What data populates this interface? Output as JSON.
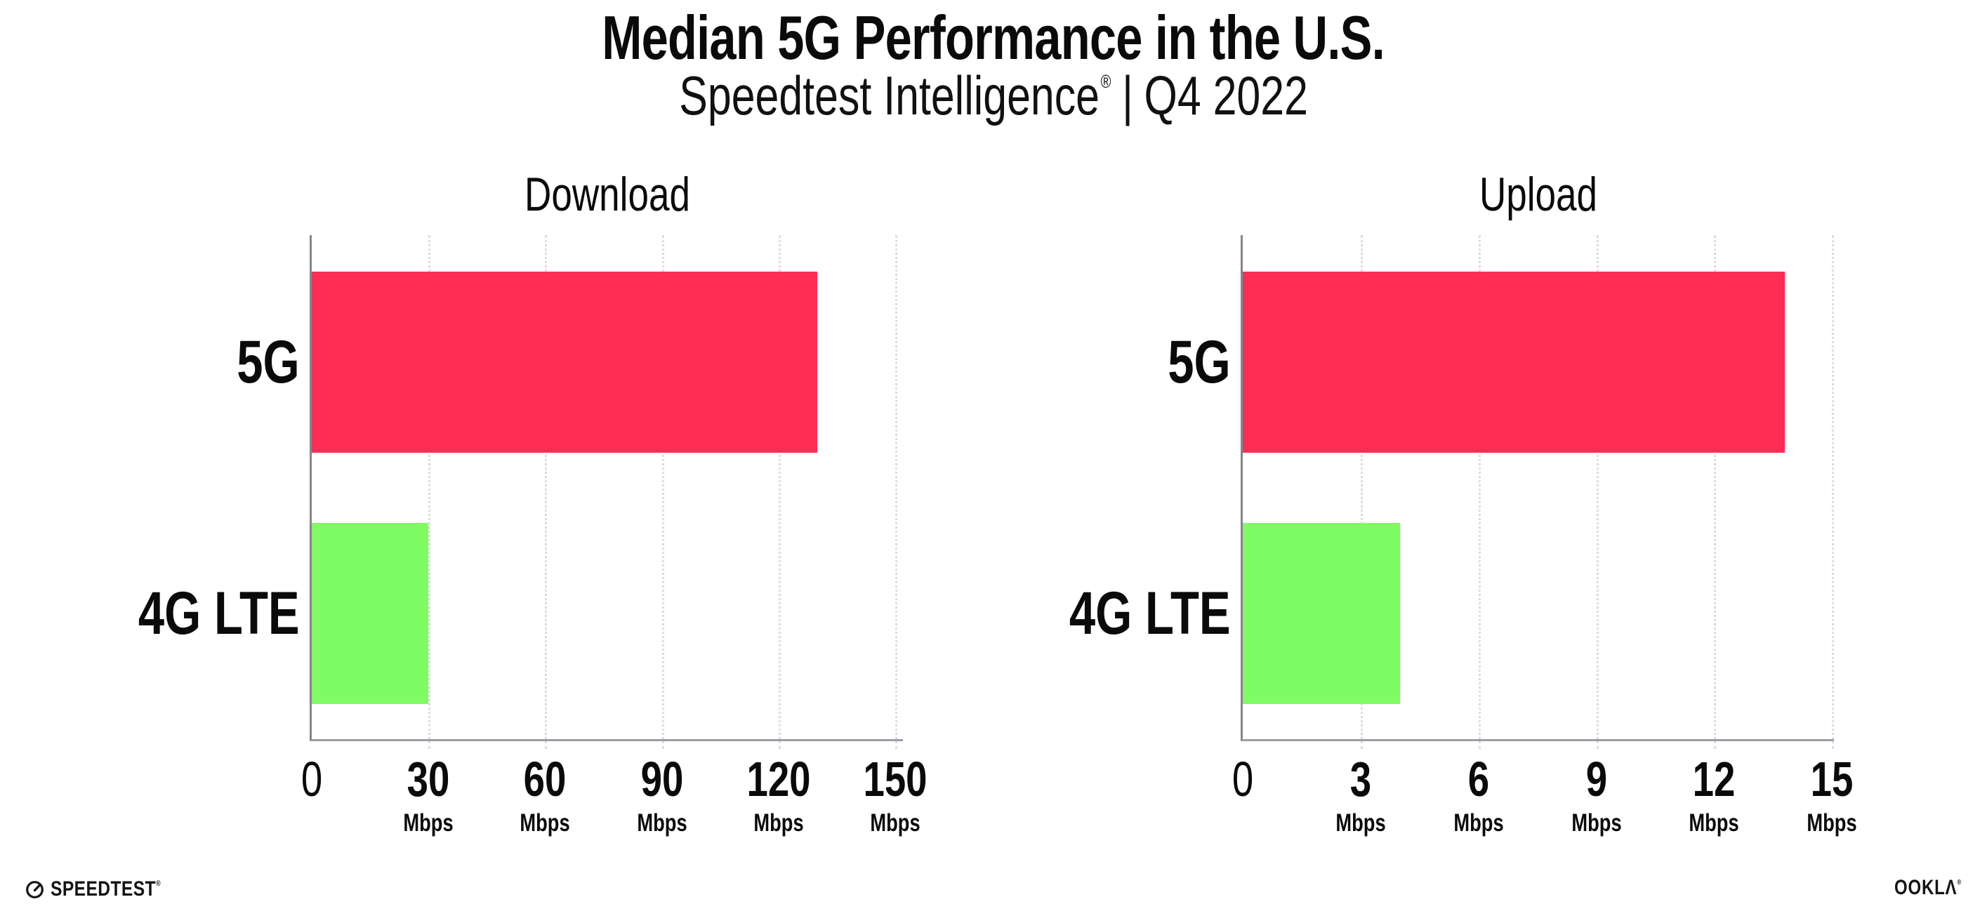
{
  "header": {
    "title": "Median 5G Performance in the U.S.",
    "subtitle_brand": "Speedtest Intelligence",
    "subtitle_reg": "®",
    "subtitle_sep": "|",
    "subtitle_period": "Q4 2022"
  },
  "footer": {
    "speedtest_label": "SPEEDTEST",
    "speedtest_reg": "®",
    "ookla_label": "OOKLΛ",
    "ookla_reg": "®"
  },
  "colors": {
    "bar_5g": "#FD2D55",
    "bar_4g_lte": "#7FFB64",
    "y_axis": "#85858b",
    "x_axis": "#9c9ca4",
    "gridline": "#dcdce8",
    "text": "#0a0a0a"
  },
  "chart_data": [
    {
      "type": "bar",
      "orientation": "horizontal",
      "title": "Download",
      "categories": [
        "5G",
        "4G LTE"
      ],
      "values": [
        130,
        30
      ],
      "unit": "Mbps",
      "xticks": [
        0,
        30,
        60,
        90,
        120,
        150
      ],
      "tick_suffix": "Mbps",
      "xlim": [
        0,
        152
      ],
      "bar_colors": [
        "#FD2D55",
        "#7FFB64"
      ],
      "grid": "vertical-dotted",
      "legend": "none"
    },
    {
      "type": "bar",
      "orientation": "horizontal",
      "title": "Upload",
      "categories": [
        "5G",
        "4G LTE"
      ],
      "values": [
        13.8,
        4
      ],
      "unit": "Mbps",
      "xticks": [
        0,
        3,
        6,
        9,
        12,
        15
      ],
      "tick_suffix": "Mbps",
      "xlim": [
        0,
        15.05
      ],
      "bar_colors": [
        "#FD2D55",
        "#7FFB64"
      ],
      "grid": "vertical-dotted",
      "legend": "none"
    }
  ]
}
